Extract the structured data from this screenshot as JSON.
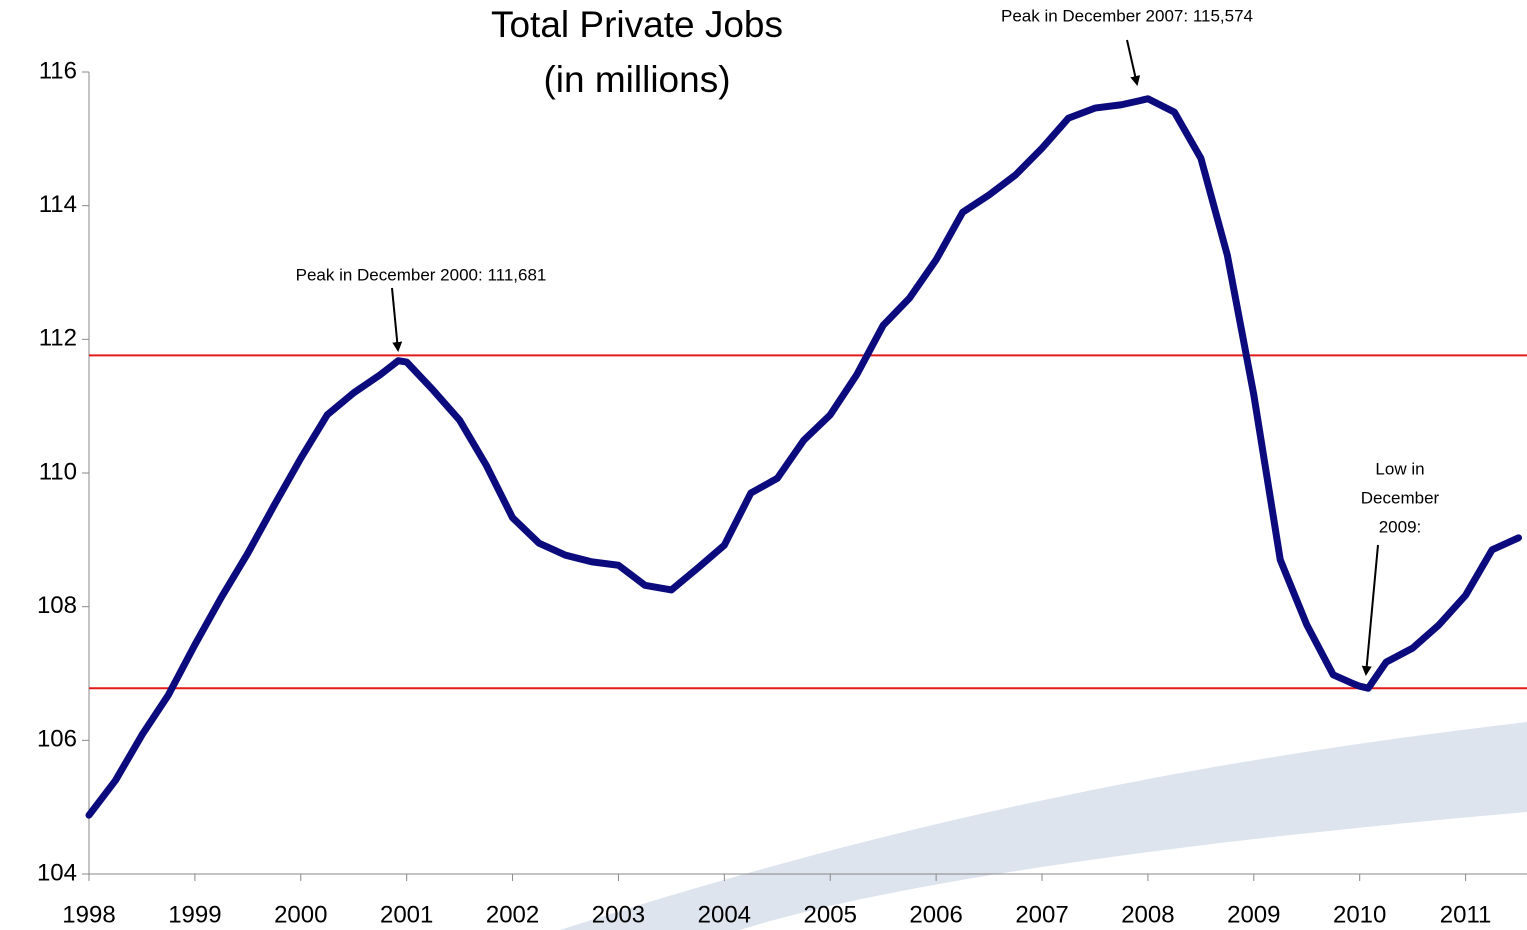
{
  "chart_data": {
    "type": "line",
    "title": [
      "Total Private Jobs",
      "(in millions)"
    ],
    "x": [
      1998.0,
      1998.25,
      1998.5,
      1998.75,
      1999.0,
      1999.25,
      1999.5,
      1999.75,
      2000.0,
      2000.25,
      2000.5,
      2000.75,
      2000.92,
      2001.0,
      2001.25,
      2001.5,
      2001.75,
      2002.0,
      2002.25,
      2002.5,
      2002.75,
      2003.0,
      2003.25,
      2003.5,
      2003.75,
      2004.0,
      2004.25,
      2004.5,
      2004.75,
      2005.0,
      2005.25,
      2005.5,
      2005.75,
      2006.0,
      2006.25,
      2006.5,
      2006.75,
      2007.0,
      2007.25,
      2007.5,
      2007.75,
      2007.92,
      2008.0,
      2008.25,
      2008.5,
      2008.75,
      2009.0,
      2009.25,
      2009.5,
      2009.75,
      2009.92,
      2010.0,
      2010.08,
      2010.25,
      2010.5,
      2010.75,
      2011.0,
      2011.25,
      2011.5
    ],
    "series": [
      {
        "name": "Total Private Jobs",
        "color": "#0b0b7e",
        "values": [
          104.88,
          105.4,
          106.08,
          106.68,
          107.43,
          108.14,
          108.8,
          109.52,
          110.22,
          110.87,
          111.2,
          111.47,
          111.68,
          111.66,
          111.24,
          110.79,
          110.12,
          109.33,
          108.95,
          108.77,
          108.67,
          108.62,
          108.32,
          108.25,
          108.58,
          108.92,
          109.7,
          109.92,
          110.49,
          110.87,
          111.47,
          112.21,
          112.62,
          113.19,
          113.9,
          114.16,
          114.46,
          114.86,
          115.31,
          115.46,
          115.51,
          115.57,
          115.6,
          115.4,
          114.71,
          113.26,
          111.17,
          108.7,
          107.73,
          106.98,
          106.86,
          106.81,
          106.78,
          107.17,
          107.38,
          107.73,
          108.17,
          108.85,
          109.03
        ]
      }
    ],
    "xlim": [
      1998,
      2011.58
    ],
    "xticks": [
      1998,
      1999,
      2000,
      2001,
      2002,
      2003,
      2004,
      2005,
      2006,
      2007,
      2008,
      2009,
      2010,
      2011
    ],
    "ylim": [
      104,
      116
    ],
    "yticks": [
      104,
      106,
      108,
      110,
      112,
      114,
      116
    ],
    "reference_lines": {
      "color": "#e31a1a",
      "values": [
        111.76,
        106.78
      ]
    },
    "annotations": [
      "Peak in December 2007: 115,574",
      "Peak in December 2000: 111,681",
      [
        "Low in",
        "December",
        "2009:"
      ]
    ]
  }
}
